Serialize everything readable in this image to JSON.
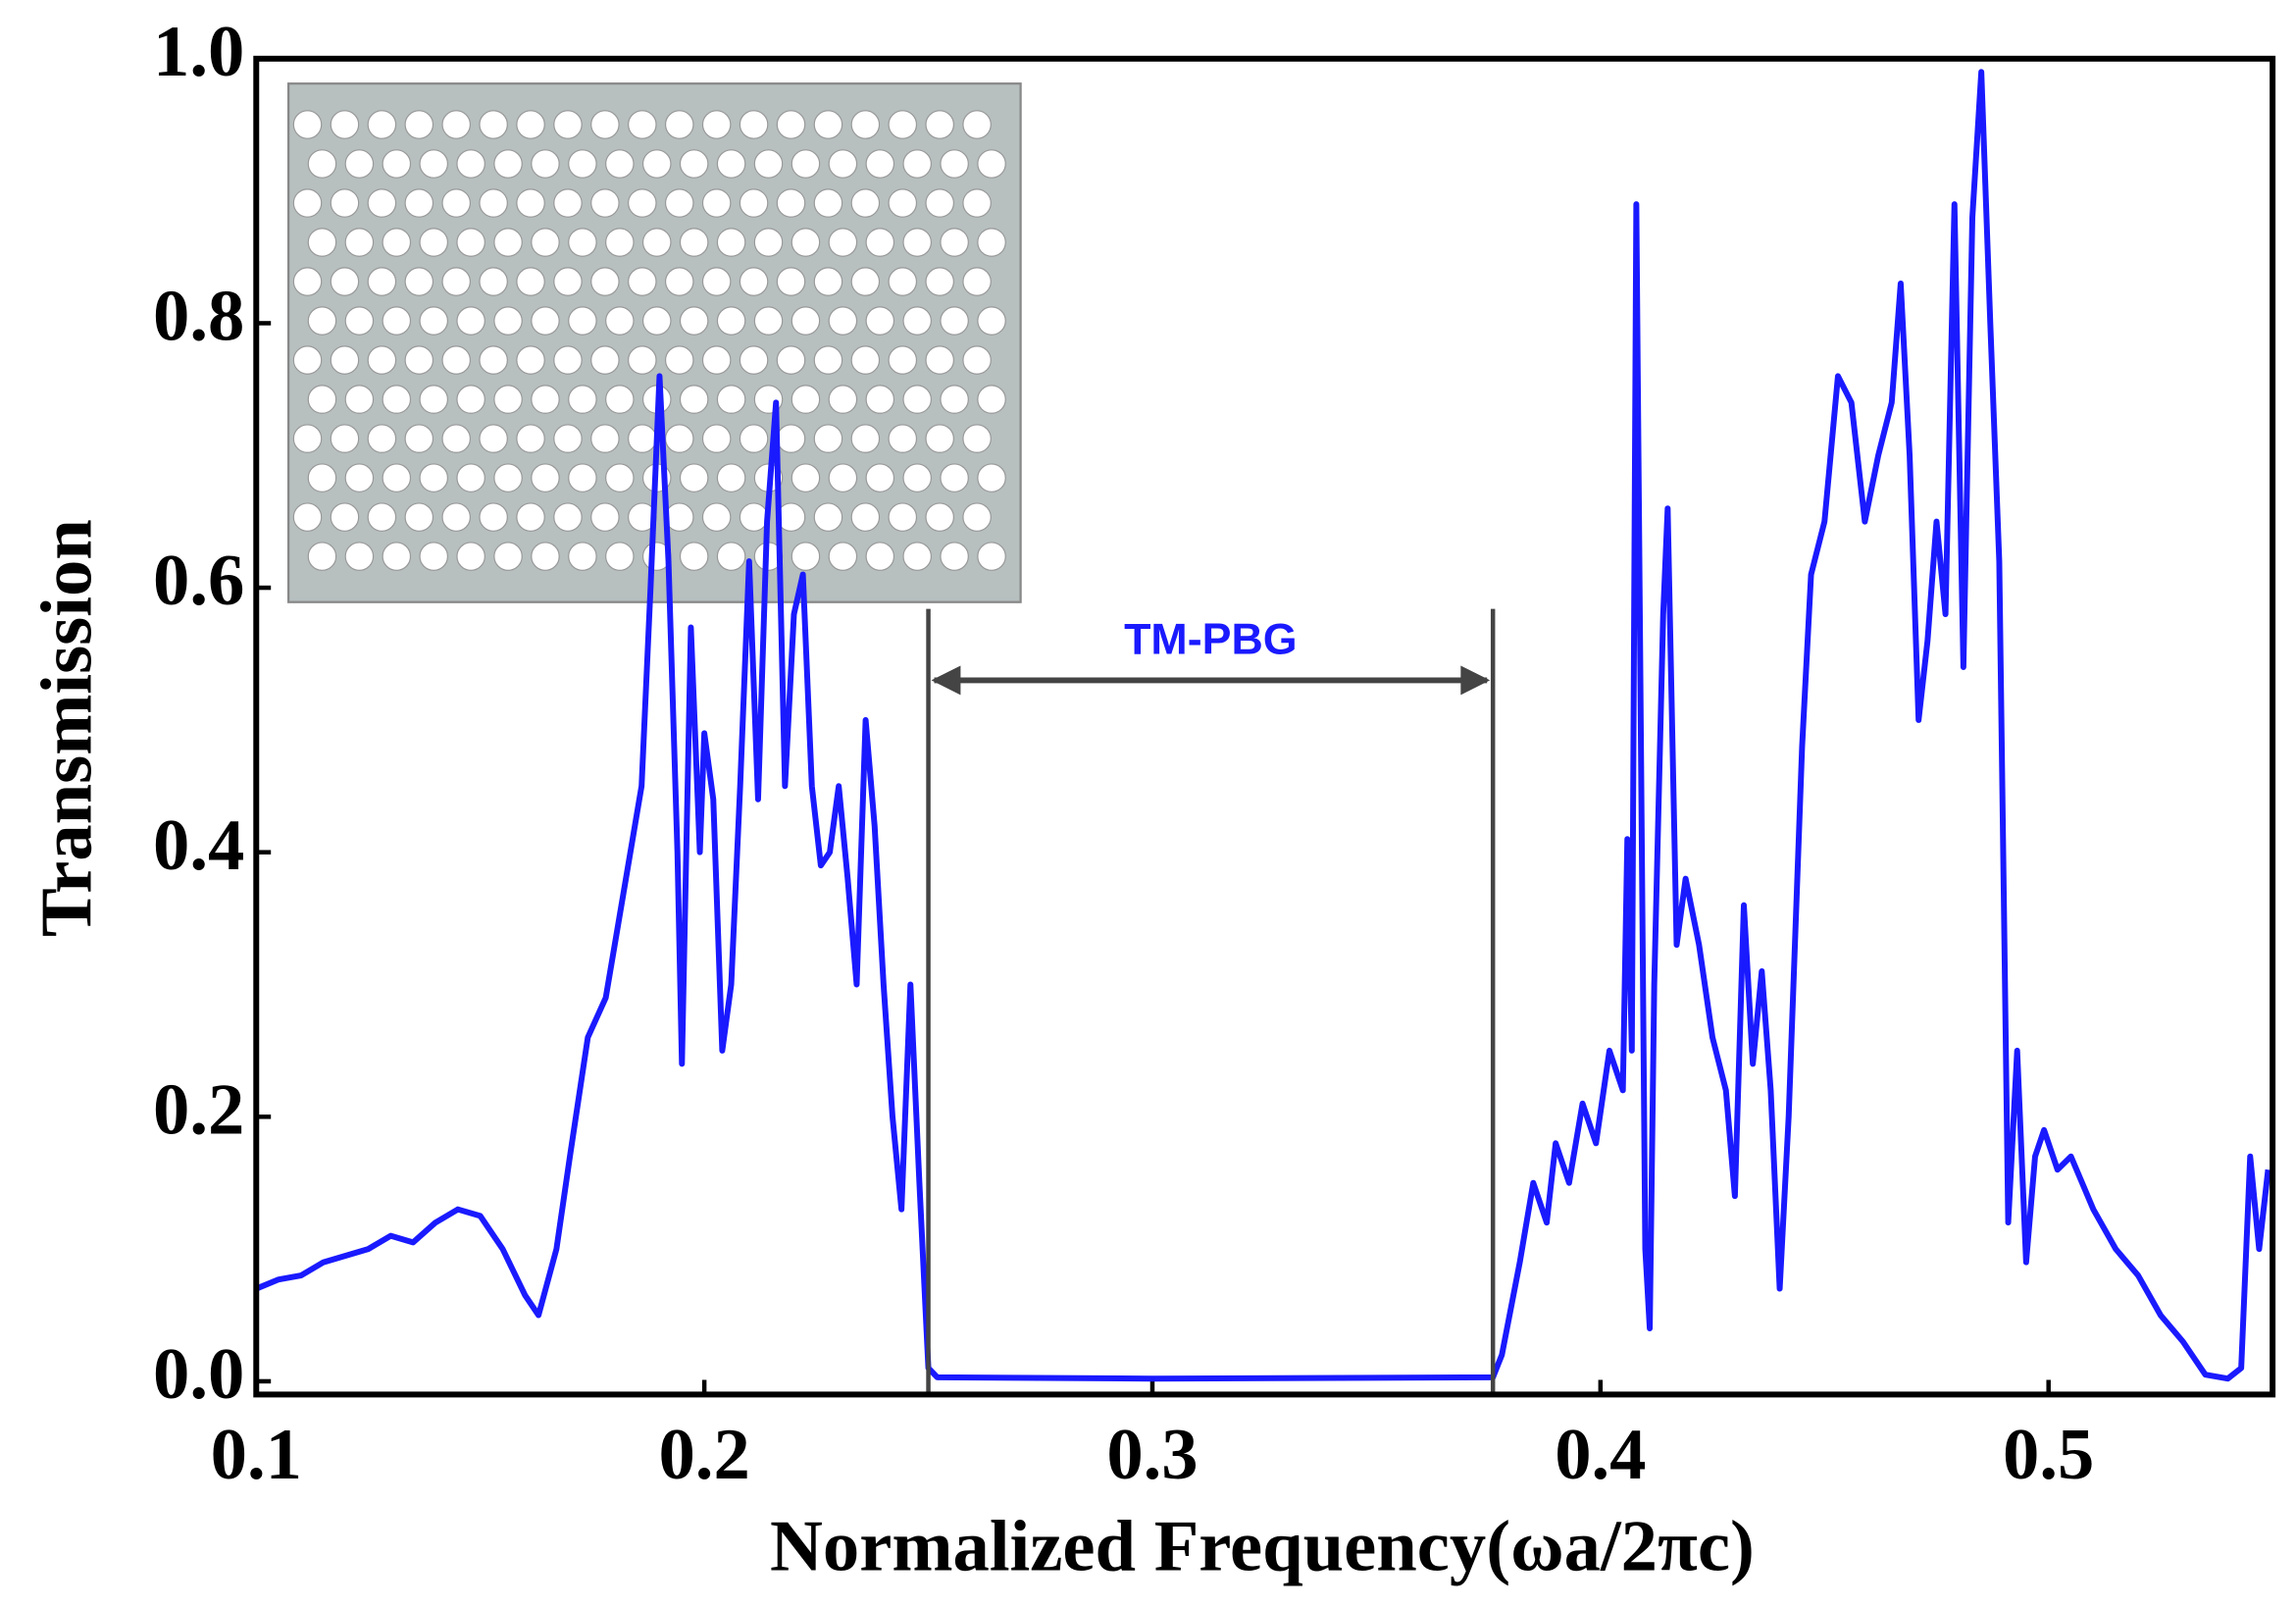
{
  "chart_data": {
    "type": "line",
    "x_label": "Normalized Frequency(ωa/2πc)",
    "y_label": "Transmission",
    "xlim": [
      0.1,
      0.55
    ],
    "ylim": [
      -0.01,
      1.0
    ],
    "xticks": [
      0.1,
      0.2,
      0.3,
      0.4,
      0.5
    ],
    "yticks": [
      {
        "value": 0,
        "label": "0.0"
      },
      0.2,
      0.4,
      0.6,
      0.8,
      {
        "value": 1,
        "label": "1.0"
      }
    ],
    "annotation": {
      "text": "TM-PBG",
      "x_start": 0.25,
      "x_end": 0.376,
      "y": 0.53,
      "y_top": 0.584,
      "color": "#444444"
    },
    "series": [
      {
        "color": "#1a1aff",
        "x": [
          0.1,
          0.105,
          0.11,
          0.115,
          0.12,
          0.125,
          0.13,
          0.135,
          0.14,
          0.145,
          0.15,
          0.155,
          0.16,
          0.163,
          0.167,
          0.17,
          0.174,
          0.178,
          0.182,
          0.186,
          0.188,
          0.19,
          0.192,
          0.194,
          0.195,
          0.197,
          0.199,
          0.2,
          0.202,
          0.204,
          0.206,
          0.208,
          0.21,
          0.212,
          0.214,
          0.216,
          0.218,
          0.22,
          0.222,
          0.224,
          0.226,
          0.228,
          0.23,
          0.232,
          0.234,
          0.236,
          0.238,
          0.24,
          0.242,
          0.244,
          0.246,
          0.248,
          0.25,
          0.252,
          0.3,
          0.376,
          0.378,
          0.382,
          0.385,
          0.388,
          0.39,
          0.393,
          0.396,
          0.399,
          0.402,
          0.405,
          0.406,
          0.407,
          0.408,
          0.41,
          0.411,
          0.412,
          0.414,
          0.415,
          0.417,
          0.419,
          0.422,
          0.425,
          0.428,
          0.43,
          0.432,
          0.434,
          0.436,
          0.438,
          0.44,
          0.442,
          0.445,
          0.447,
          0.45,
          0.453,
          0.456,
          0.459,
          0.462,
          0.465,
          0.467,
          0.469,
          0.471,
          0.473,
          0.475,
          0.477,
          0.479,
          0.481,
          0.483,
          0.485,
          0.487,
          0.489,
          0.491,
          0.493,
          0.495,
          0.497,
          0.499,
          0.502,
          0.505,
          0.51,
          0.515,
          0.52,
          0.525,
          0.53,
          0.535,
          0.54,
          0.543,
          0.545,
          0.547,
          0.549
        ],
        "values": [
          0.07,
          0.077,
          0.08,
          0.09,
          0.095,
          0.1,
          0.11,
          0.105,
          0.12,
          0.13,
          0.125,
          0.1,
          0.065,
          0.05,
          0.1,
          0.17,
          0.26,
          0.29,
          0.37,
          0.45,
          0.6,
          0.76,
          0.62,
          0.4,
          0.24,
          0.57,
          0.4,
          0.49,
          0.44,
          0.25,
          0.3,
          0.45,
          0.62,
          0.44,
          0.65,
          0.74,
          0.45,
          0.58,
          0.61,
          0.45,
          0.39,
          0.4,
          0.45,
          0.38,
          0.3,
          0.5,
          0.42,
          0.3,
          0.2,
          0.13,
          0.3,
          0.15,
          0.01,
          0.003,
          0.002,
          0.003,
          0.02,
          0.09,
          0.15,
          0.12,
          0.18,
          0.15,
          0.21,
          0.18,
          0.25,
          0.22,
          0.41,
          0.25,
          0.89,
          0.1,
          0.04,
          0.3,
          0.58,
          0.66,
          0.33,
          0.38,
          0.33,
          0.26,
          0.22,
          0.14,
          0.36,
          0.24,
          0.31,
          0.22,
          0.07,
          0.2,
          0.48,
          0.61,
          0.65,
          0.76,
          0.74,
          0.65,
          0.7,
          0.74,
          0.83,
          0.7,
          0.5,
          0.56,
          0.65,
          0.58,
          0.89,
          0.54,
          0.88,
          0.99,
          0.8,
          0.62,
          0.12,
          0.25,
          0.09,
          0.17,
          0.19,
          0.16,
          0.17,
          0.13,
          0.1,
          0.08,
          0.05,
          0.03,
          0.005,
          0.002,
          0.01,
          0.17,
          0.1,
          0.16
        ]
      }
    ]
  }
}
